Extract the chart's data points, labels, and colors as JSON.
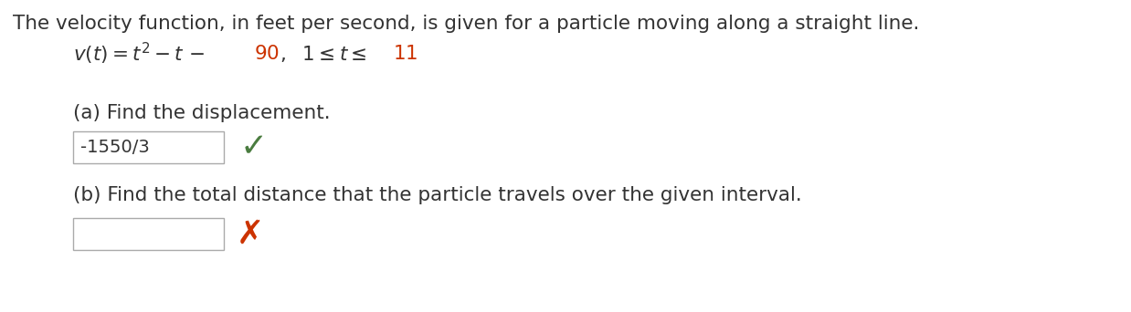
{
  "background_color": "#ffffff",
  "title_text": "The velocity function, in feet per second, is given for a particle moving along a straight line.",
  "title_fontsize": 15.5,
  "part_a_label": "(a) Find the displacement.",
  "part_a_fontsize": 15.5,
  "answer_a_text": "-1550/3",
  "answer_a_fontsize": 14,
  "check_color": "#4a7c3f",
  "part_b_label": "(b) Find the total distance that the particle travels over the given interval.",
  "part_b_fontsize": 15.5,
  "cross_color": "#cc3300",
  "red_color": "#cc3300",
  "dark_color": "#333333",
  "box_edge_color": "#aaaaaa",
  "figwidth": 12.38,
  "figheight": 3.42,
  "dpi": 100
}
